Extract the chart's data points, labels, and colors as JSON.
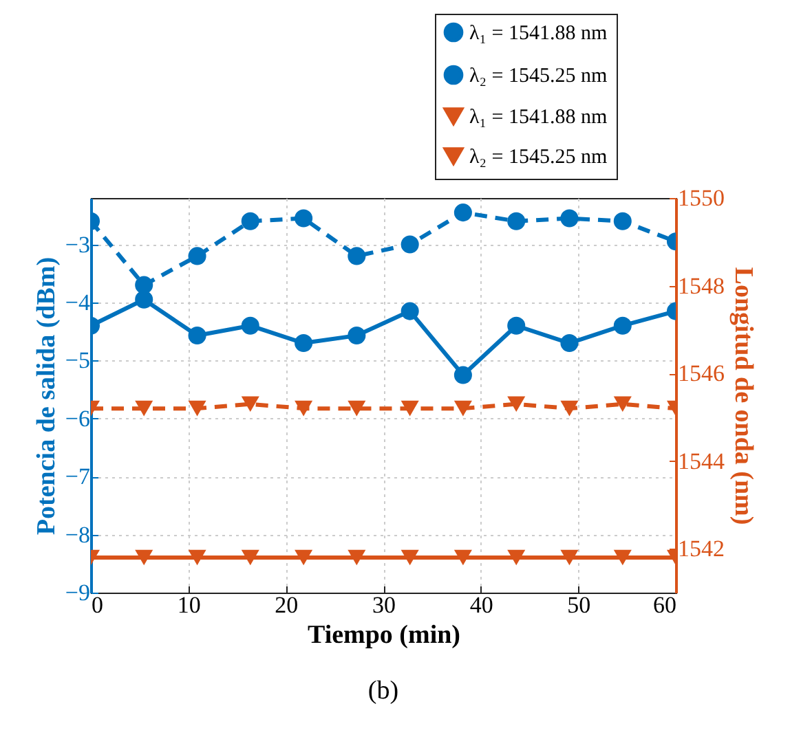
{
  "chart_data": {
    "type": "line",
    "xlabel": "Tiempo (min)",
    "ylabel": "Potencia de salida (dBm)",
    "y2label": "Longitud de onda (nm)",
    "x": [
      0,
      5.45,
      10.91,
      16.36,
      21.82,
      27.27,
      32.73,
      38.18,
      43.64,
      49.09,
      54.55,
      60
    ],
    "series": [
      {
        "name": "λ₁ = 1541.88 nm",
        "color": "#0072bd",
        "marker": "circle",
        "line_style": "solid",
        "values": [
          -4.4,
          -3.95,
          -4.57,
          -4.4,
          -4.7,
          -4.57,
          -4.15,
          -5.25,
          -4.4,
          -4.7,
          -4.4,
          -4.15
        ]
      },
      {
        "name": "λ₂ = 1545.25 nm",
        "color": "#0072bd",
        "marker": "circle",
        "line_style": "dashed",
        "values": [
          -2.6,
          -3.7,
          -3.2,
          -2.6,
          -2.55,
          -3.2,
          -3.0,
          -2.45,
          -2.6,
          -2.55,
          -2.6,
          -2.95
        ]
      },
      {
        "name": "λ₁ = 1541.88 nm",
        "color": "#d95319",
        "marker": "triangle",
        "line_style": "solid",
        "axis": "y2",
        "values": [
          1541.8,
          1541.8,
          1541.8,
          1541.8,
          1541.8,
          1541.8,
          1541.8,
          1541.8,
          1541.8,
          1541.8,
          1541.8,
          1541.8
        ]
      },
      {
        "name": "λ₂ = 1545.25 nm",
        "color": "#d95319",
        "marker": "triangle",
        "line_style": "dashed",
        "axis": "y2",
        "values": [
          1545.2,
          1545.2,
          1545.2,
          1545.3,
          1545.2,
          1545.2,
          1545.2,
          1545.2,
          1545.3,
          1545.2,
          1545.3,
          1545.2
        ]
      }
    ],
    "xlim": [
      0,
      60
    ],
    "xticks": [
      0,
      10,
      20,
      30,
      40,
      50,
      60
    ],
    "ylim": [
      -9,
      -2.2
    ],
    "yticks": [
      -9,
      -8,
      -7,
      -6,
      -5,
      -4,
      -3
    ],
    "y2lim": [
      1541,
      1550
    ],
    "y2ticks": [
      1542,
      1544,
      1546,
      1548,
      1550
    ],
    "grid": true,
    "legend": "top right",
    "annotations": [
      "(b)"
    ]
  }
}
